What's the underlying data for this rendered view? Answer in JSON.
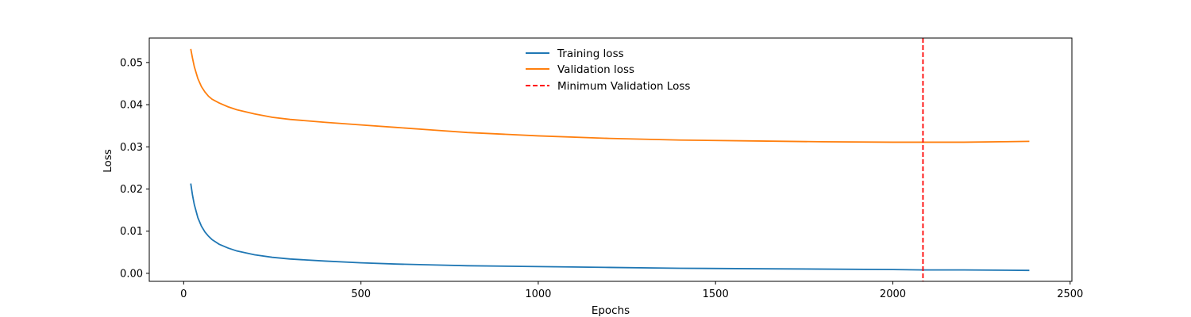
{
  "chart_data": {
    "type": "line",
    "title": "",
    "xlabel": "Epochs",
    "ylabel": "Loss",
    "xlim": [
      -97,
      2505
    ],
    "ylim": [
      -0.0019,
      0.0558
    ],
    "x_ticks": [
      0,
      500,
      1000,
      1500,
      2000,
      2500
    ],
    "x_tick_labels": [
      "0",
      "500",
      "1000",
      "1500",
      "2000",
      "2500"
    ],
    "y_ticks": [
      0.0,
      0.01,
      0.02,
      0.03,
      0.04,
      0.05
    ],
    "y_tick_labels": [
      "0.00",
      "0.01",
      "0.02",
      "0.03",
      "0.04",
      "0.05"
    ],
    "grid": false,
    "legend_position": "top-center",
    "series": [
      {
        "name": "Training loss",
        "color": "#1f77b4",
        "x": [
          20,
          25,
          30,
          40,
          50,
          60,
          70,
          80,
          100,
          125,
          150,
          200,
          250,
          300,
          400,
          500,
          600,
          700,
          800,
          1000,
          1200,
          1400,
          1600,
          1800,
          2000,
          2085,
          2200,
          2385
        ],
        "y": [
          0.0213,
          0.0185,
          0.0163,
          0.0132,
          0.0112,
          0.0098,
          0.0088,
          0.008,
          0.0069,
          0.006,
          0.0053,
          0.0044,
          0.0038,
          0.0034,
          0.0029,
          0.0025,
          0.0022,
          0.002,
          0.0018,
          0.0016,
          0.0014,
          0.0012,
          0.0011,
          0.001,
          0.0009,
          0.0008,
          0.0008,
          0.0007
        ]
      },
      {
        "name": "Validation loss",
        "color": "#ff7f0e",
        "x": [
          20,
          25,
          30,
          40,
          50,
          60,
          70,
          80,
          100,
          125,
          150,
          200,
          250,
          300,
          400,
          500,
          600,
          700,
          800,
          1000,
          1200,
          1400,
          1600,
          1800,
          2000,
          2085,
          2200,
          2300,
          2385
        ],
        "y": [
          0.0532,
          0.051,
          0.049,
          0.0462,
          0.0443,
          0.043,
          0.042,
          0.0413,
          0.0404,
          0.0395,
          0.0388,
          0.0378,
          0.037,
          0.0365,
          0.0358,
          0.0352,
          0.0346,
          0.034,
          0.0334,
          0.0326,
          0.032,
          0.0316,
          0.0314,
          0.0312,
          0.0311,
          0.0311,
          0.0311,
          0.0312,
          0.0313
        ]
      }
    ],
    "vlines": [
      {
        "name": "Minimum Validation Loss",
        "x": 2085,
        "color": "#ff0000",
        "style": "dashed"
      }
    ]
  }
}
